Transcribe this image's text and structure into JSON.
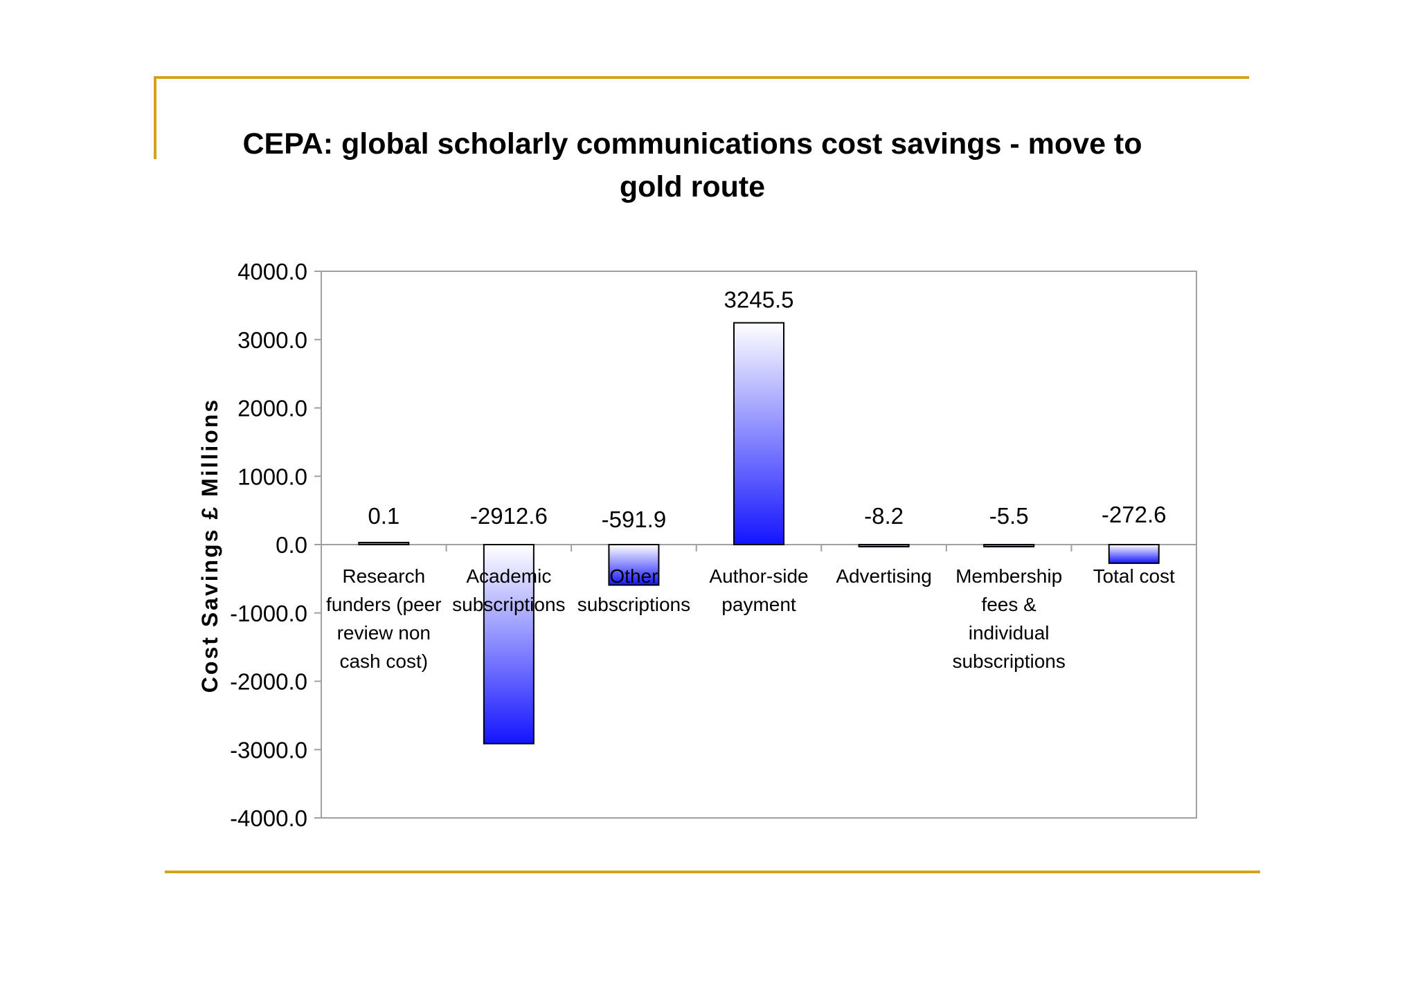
{
  "colors": {
    "accent_rule": "#d4a319",
    "bar_fill_dark": "#1414ff",
    "bar_fill_light": "#ffffff",
    "bar_outline": "#000000",
    "plot_border": "#a0a0a0"
  },
  "chart_data": {
    "type": "bar",
    "title_lines": [
      "CEPA: global scholarly communications cost savings - move to",
      "gold route"
    ],
    "ylabel": "Cost Savings £ Millions",
    "xlabel": "",
    "ylim": [
      -4000,
      4000
    ],
    "yticks": [
      "4000.0",
      "3000.0",
      "2000.0",
      "1000.0",
      "0.0",
      "-1000.0",
      "-2000.0",
      "-3000.0",
      "-4000.0"
    ],
    "grid": false,
    "legend": "none",
    "categories": [
      [
        "Research",
        "funders (peer",
        "review non",
        "cash cost)"
      ],
      [
        "Academic",
        "subscriptions"
      ],
      [
        "Other",
        "subscriptions"
      ],
      [
        "Author-side",
        "payment"
      ],
      [
        "Advertising"
      ],
      [
        "Membership",
        "fees &",
        "individual",
        "subscriptions"
      ],
      [
        "Total cost"
      ]
    ],
    "values": [
      0.1,
      -2912.6,
      -591.9,
      3245.5,
      -8.2,
      -5.5,
      -272.6
    ],
    "data_labels": [
      "0.1",
      "-2912.6",
      "-591.9",
      "3245.5",
      "-8.2",
      "-5.5",
      "-272.6"
    ]
  }
}
